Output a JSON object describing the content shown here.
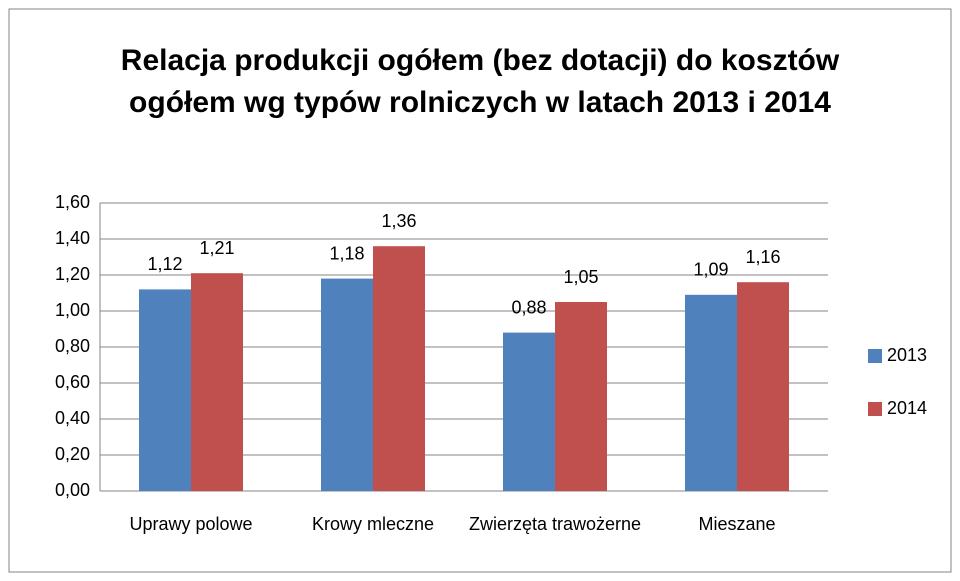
{
  "chart_data": {
    "type": "bar",
    "title": "Relacja produkcji ogółem (bez dotacji) do kosztów ogółem wg typów rolniczych w latach 2013 i 2014",
    "categories": [
      "Uprawy polowe",
      "Krowy mleczne",
      "Zwierzęta trawożerne",
      "Mieszane"
    ],
    "series": [
      {
        "name": "2013",
        "color": "#4f81bd",
        "values": [
          1.12,
          1.18,
          0.88,
          1.09
        ],
        "value_labels": [
          "1,12",
          "1,18",
          "0,88",
          "1,09"
        ]
      },
      {
        "name": "2014",
        "color": "#c0504d",
        "values": [
          1.21,
          1.36,
          1.05,
          1.16
        ],
        "value_labels": [
          "1,21",
          "1,36",
          "1,05",
          "1,16"
        ]
      }
    ],
    "ylim": [
      0,
      1.6
    ],
    "yticks": [
      {
        "value": 0,
        "label": "0,00"
      },
      {
        "value": 0.2,
        "label": "0,20"
      },
      {
        "value": 0.4,
        "label": "0,40"
      },
      {
        "value": 0.6,
        "label": "0,60"
      },
      {
        "value": 0.8,
        "label": "0,80"
      },
      {
        "value": 1.0,
        "label": "1,00"
      },
      {
        "value": 1.2,
        "label": "1,20"
      },
      {
        "value": 1.4,
        "label": "1,40"
      },
      {
        "value": 1.6,
        "label": "1,60"
      }
    ],
    "grid": true,
    "legend": "right"
  }
}
